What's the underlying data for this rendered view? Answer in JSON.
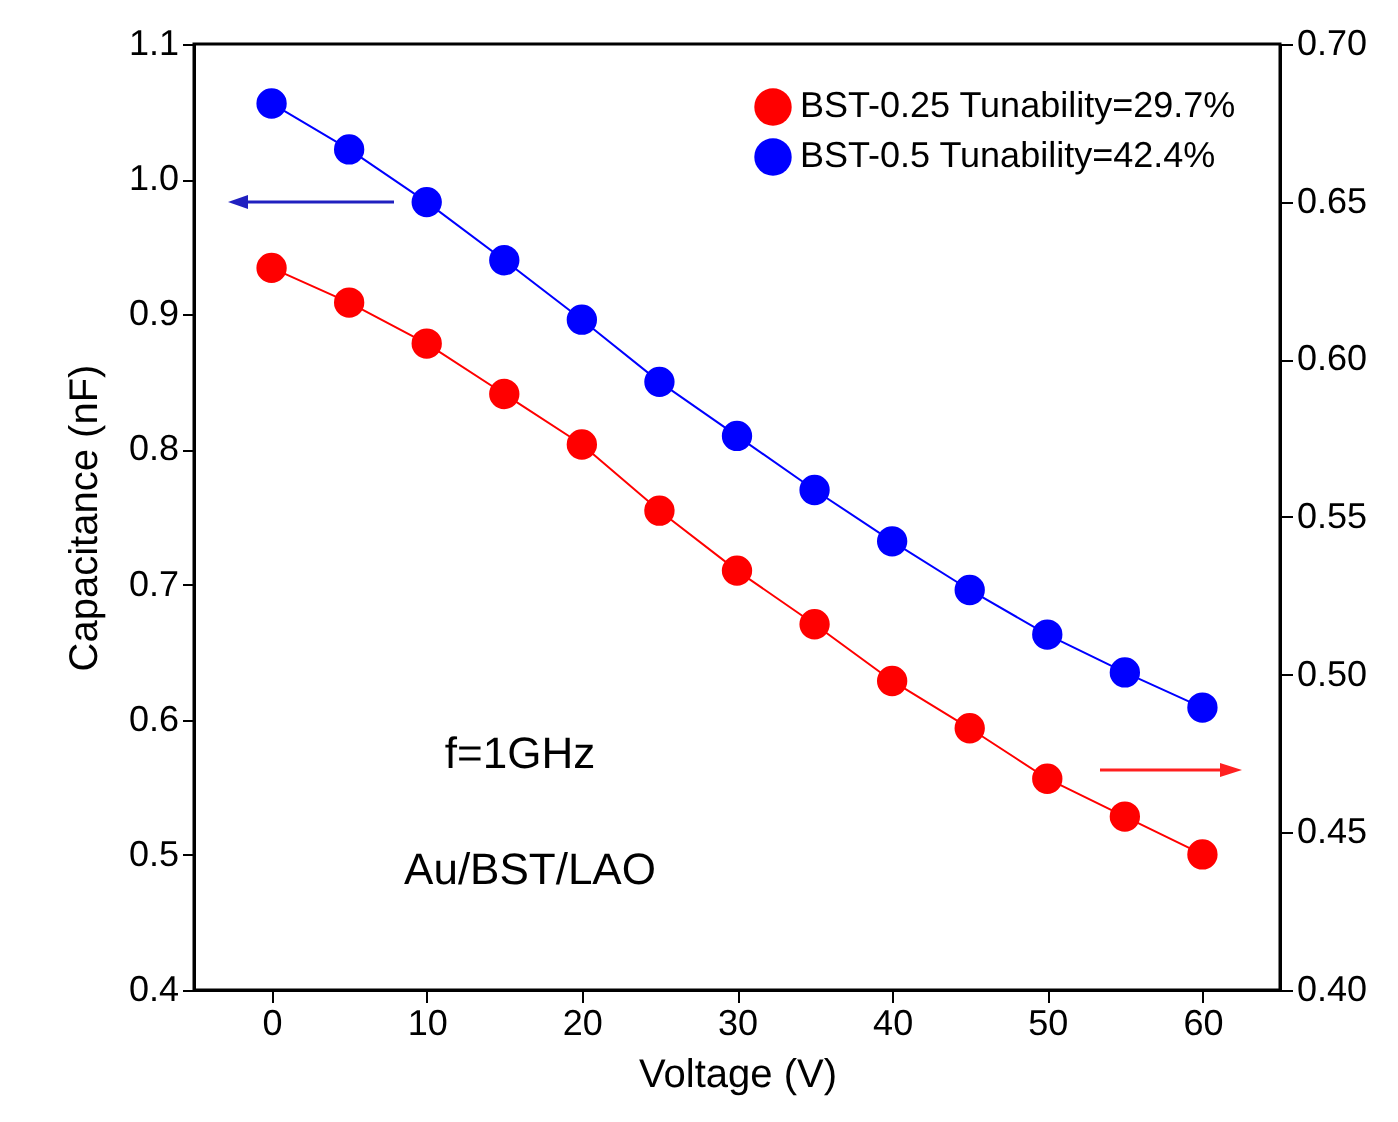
{
  "chart_data": {
    "type": "line",
    "xlabel": "Voltage (V)",
    "ylabel": "Capacitance (nF)",
    "x": [
      0,
      5,
      10,
      15,
      20,
      25,
      30,
      35,
      40,
      45,
      50,
      55,
      60
    ],
    "series": [
      {
        "name": "BST-0.25 Tunability=29.7%",
        "color": "#ff0000",
        "axis": "y2",
        "values": [
          0.629,
          0.618,
          0.605,
          0.589,
          0.573,
          0.552,
          0.533,
          0.516,
          0.498,
          0.483,
          0.467,
          0.455,
          0.443
        ]
      },
      {
        "name": "BST-0.5   Tunability=42.4%",
        "color": "#0000ff",
        "values": [
          1.056,
          1.022,
          0.983,
          0.94,
          0.896,
          0.85,
          0.81,
          0.77,
          0.732,
          0.696,
          0.663,
          0.635,
          0.609
        ]
      }
    ],
    "xlim": [
      -5,
      65
    ],
    "xticks": [
      0,
      10,
      20,
      30,
      40,
      50,
      60
    ],
    "ylim": [
      0.4,
      1.1
    ],
    "yticks": [
      0.4,
      0.5,
      0.6,
      0.7,
      0.8,
      0.9,
      {
        "value": 1,
        "label": "1.0"
      },
      1.1
    ],
    "y2lim": [
      0.4,
      0.7
    ],
    "y2ticks": [
      {
        "value": 0.4,
        "label": "0.40"
      },
      {
        "value": 0.45,
        "label": "0.45"
      },
      {
        "value": 0.5,
        "label": "0.50"
      },
      {
        "value": 0.55,
        "label": "0.55"
      },
      {
        "value": 0.6,
        "label": "0.60"
      },
      {
        "value": 0.65,
        "label": "0.65"
      },
      {
        "value": 0.7,
        "label": "0.70"
      }
    ],
    "annotations": [
      "f=1GHz",
      "Au/BST/LAO"
    ],
    "legend": "top right",
    "marker": "circle",
    "line_style": "solid",
    "grid": false
  }
}
